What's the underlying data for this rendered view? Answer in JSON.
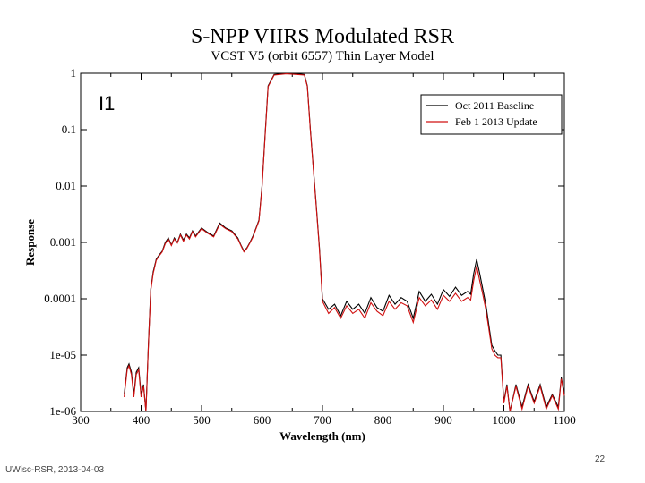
{
  "slide": {
    "footer_left": "UWisc-RSR, 2013-04-03",
    "page_number": "22"
  },
  "chart_data": {
    "type": "line",
    "title": "S-NPP VIIRS Modulated RSR",
    "subtitle": "VCST V5 (orbit 6557) Thin Layer Model",
    "band_label": "I1",
    "xlabel": "Wavelength (nm)",
    "ylabel": "Response",
    "xlim": [
      300,
      1100
    ],
    "ylim": [
      1e-06,
      1
    ],
    "yscale": "log",
    "x_ticks": [
      300,
      400,
      500,
      600,
      700,
      800,
      900,
      1000,
      1100
    ],
    "x_tick_labels": [
      "300",
      "400",
      "500",
      "600",
      "700",
      "800",
      "900",
      "1000",
      "1100"
    ],
    "y_ticks": [
      1e-06,
      1e-05,
      0.0001,
      0.001,
      0.01,
      0.1,
      1
    ],
    "y_tick_labels": [
      "1e-06",
      "1e-05",
      "0.0001",
      "0.001",
      "0.01",
      "0.1",
      "1"
    ],
    "legend_position": "top-right",
    "series": [
      {
        "name": "Oct 2011 Baseline",
        "color": "#000000",
        "x": [
          372,
          377,
          380,
          384,
          388,
          392,
          396,
          400,
          404,
          408,
          412,
          416,
          420,
          425,
          430,
          435,
          440,
          445,
          450,
          455,
          460,
          465,
          470,
          475,
          480,
          485,
          490,
          500,
          510,
          520,
          530,
          540,
          550,
          560,
          565,
          570,
          575,
          580,
          585,
          590,
          595,
          600,
          605,
          610,
          620,
          640,
          660,
          670,
          675,
          680,
          685,
          690,
          695,
          700,
          710,
          720,
          730,
          740,
          750,
          760,
          770,
          780,
          790,
          800,
          810,
          820,
          830,
          840,
          850,
          860,
          870,
          880,
          890,
          900,
          910,
          920,
          930,
          940,
          945,
          950,
          955,
          960,
          965,
          970,
          975,
          980,
          985,
          990,
          995,
          1000,
          1005,
          1010,
          1020,
          1030,
          1040,
          1050,
          1060,
          1070,
          1080,
          1090,
          1095,
          1100
        ],
        "y": [
          2e-06,
          6e-06,
          7e-06,
          5e-06,
          2e-06,
          5e-06,
          6e-06,
          2e-06,
          3e-06,
          1e-06,
          1.5e-05,
          0.00015,
          0.0003,
          0.0005,
          0.0006,
          0.0007,
          0.001,
          0.0012,
          0.0009,
          0.0012,
          0.001,
          0.0014,
          0.0011,
          0.0014,
          0.0012,
          0.0016,
          0.0013,
          0.0018,
          0.0015,
          0.0013,
          0.0022,
          0.0018,
          0.0016,
          0.0012,
          0.0009,
          0.0007,
          0.0008,
          0.001,
          0.0013,
          0.0018,
          0.0025,
          0.01,
          0.08,
          0.6,
          0.95,
          1.0,
          0.97,
          0.95,
          0.6,
          0.1,
          0.02,
          0.004,
          0.0008,
          0.0001,
          6.5e-05,
          8e-05,
          5e-05,
          9e-05,
          6.5e-05,
          8e-05,
          5.5e-05,
          0.000105,
          7e-05,
          6e-05,
          0.000115,
          8e-05,
          0.000105,
          9e-05,
          4.5e-05,
          0.000135,
          9e-05,
          0.00012,
          8e-05,
          0.000145,
          0.00011,
          0.00016,
          0.000115,
          0.000135,
          0.00012,
          0.00028,
          0.0005,
          0.00028,
          0.00015,
          8e-05,
          3.5e-05,
          1.5e-05,
          1.2e-05,
          1e-05,
          1e-05,
          1.5e-06,
          3e-06,
          1e-06,
          3e-06,
          1.2e-06,
          3e-06,
          1.5e-06,
          3e-06,
          1.2e-06,
          2e-06,
          1.2e-06,
          4e-06,
          2e-06
        ]
      },
      {
        "name": "Feb 1 2013 Update",
        "color": "#d01010",
        "x": [
          372,
          377,
          380,
          384,
          388,
          392,
          396,
          400,
          404,
          408,
          412,
          416,
          420,
          425,
          430,
          435,
          440,
          445,
          450,
          455,
          460,
          465,
          470,
          475,
          480,
          485,
          490,
          500,
          510,
          520,
          530,
          540,
          550,
          560,
          565,
          570,
          575,
          580,
          585,
          590,
          595,
          600,
          605,
          610,
          620,
          640,
          660,
          670,
          675,
          680,
          685,
          690,
          695,
          700,
          710,
          720,
          730,
          740,
          750,
          760,
          770,
          780,
          790,
          800,
          810,
          820,
          830,
          840,
          850,
          860,
          870,
          880,
          890,
          900,
          910,
          920,
          930,
          940,
          945,
          950,
          955,
          960,
          965,
          970,
          975,
          980,
          985,
          990,
          995,
          1000,
          1005,
          1010,
          1020,
          1030,
          1040,
          1050,
          1060,
          1070,
          1080,
          1090,
          1095,
          1100
        ],
        "y": [
          1.8e-06,
          5.5e-06,
          6.5e-06,
          4.5e-06,
          1.8e-06,
          4.5e-06,
          5.5e-06,
          1.8e-06,
          2.8e-06,
          1e-06,
          1.4e-05,
          0.00014,
          0.00028,
          0.00048,
          0.00058,
          0.00068,
          0.00095,
          0.00115,
          0.00088,
          0.00115,
          0.00098,
          0.00135,
          0.00105,
          0.00135,
          0.00115,
          0.00155,
          0.00125,
          0.00175,
          0.00145,
          0.00125,
          0.0021,
          0.00175,
          0.00155,
          0.00115,
          0.00088,
          0.00068,
          0.00078,
          0.00098,
          0.00125,
          0.00175,
          0.0024,
          0.0095,
          0.075,
          0.58,
          0.93,
          0.98,
          0.95,
          0.93,
          0.58,
          0.095,
          0.019,
          0.0038,
          0.00075,
          9e-05,
          5.5e-05,
          7e-05,
          4.5e-05,
          7.5e-05,
          5.5e-05,
          6.5e-05,
          4.5e-05,
          8.5e-05,
          6e-05,
          5e-05,
          9e-05,
          6.5e-05,
          8.5e-05,
          7.5e-05,
          3.8e-05,
          0.000105,
          7.5e-05,
          9.5e-05,
          6.5e-05,
          0.000115,
          9e-05,
          0.000125,
          9e-05,
          0.000105,
          9.5e-05,
          0.00021,
          0.00038,
          0.00021,
          0.00012,
          6.5e-05,
          3e-05,
          1.3e-05,
          1e-05,
          9e-06,
          9e-06,
          1.4e-06,
          2.8e-06,
          1e-06,
          2.8e-06,
          1.1e-06,
          2.8e-06,
          1.4e-06,
          2.8e-06,
          1.1e-06,
          1.9e-06,
          1.1e-06,
          3.8e-06,
          1.9e-06
        ]
      }
    ]
  }
}
